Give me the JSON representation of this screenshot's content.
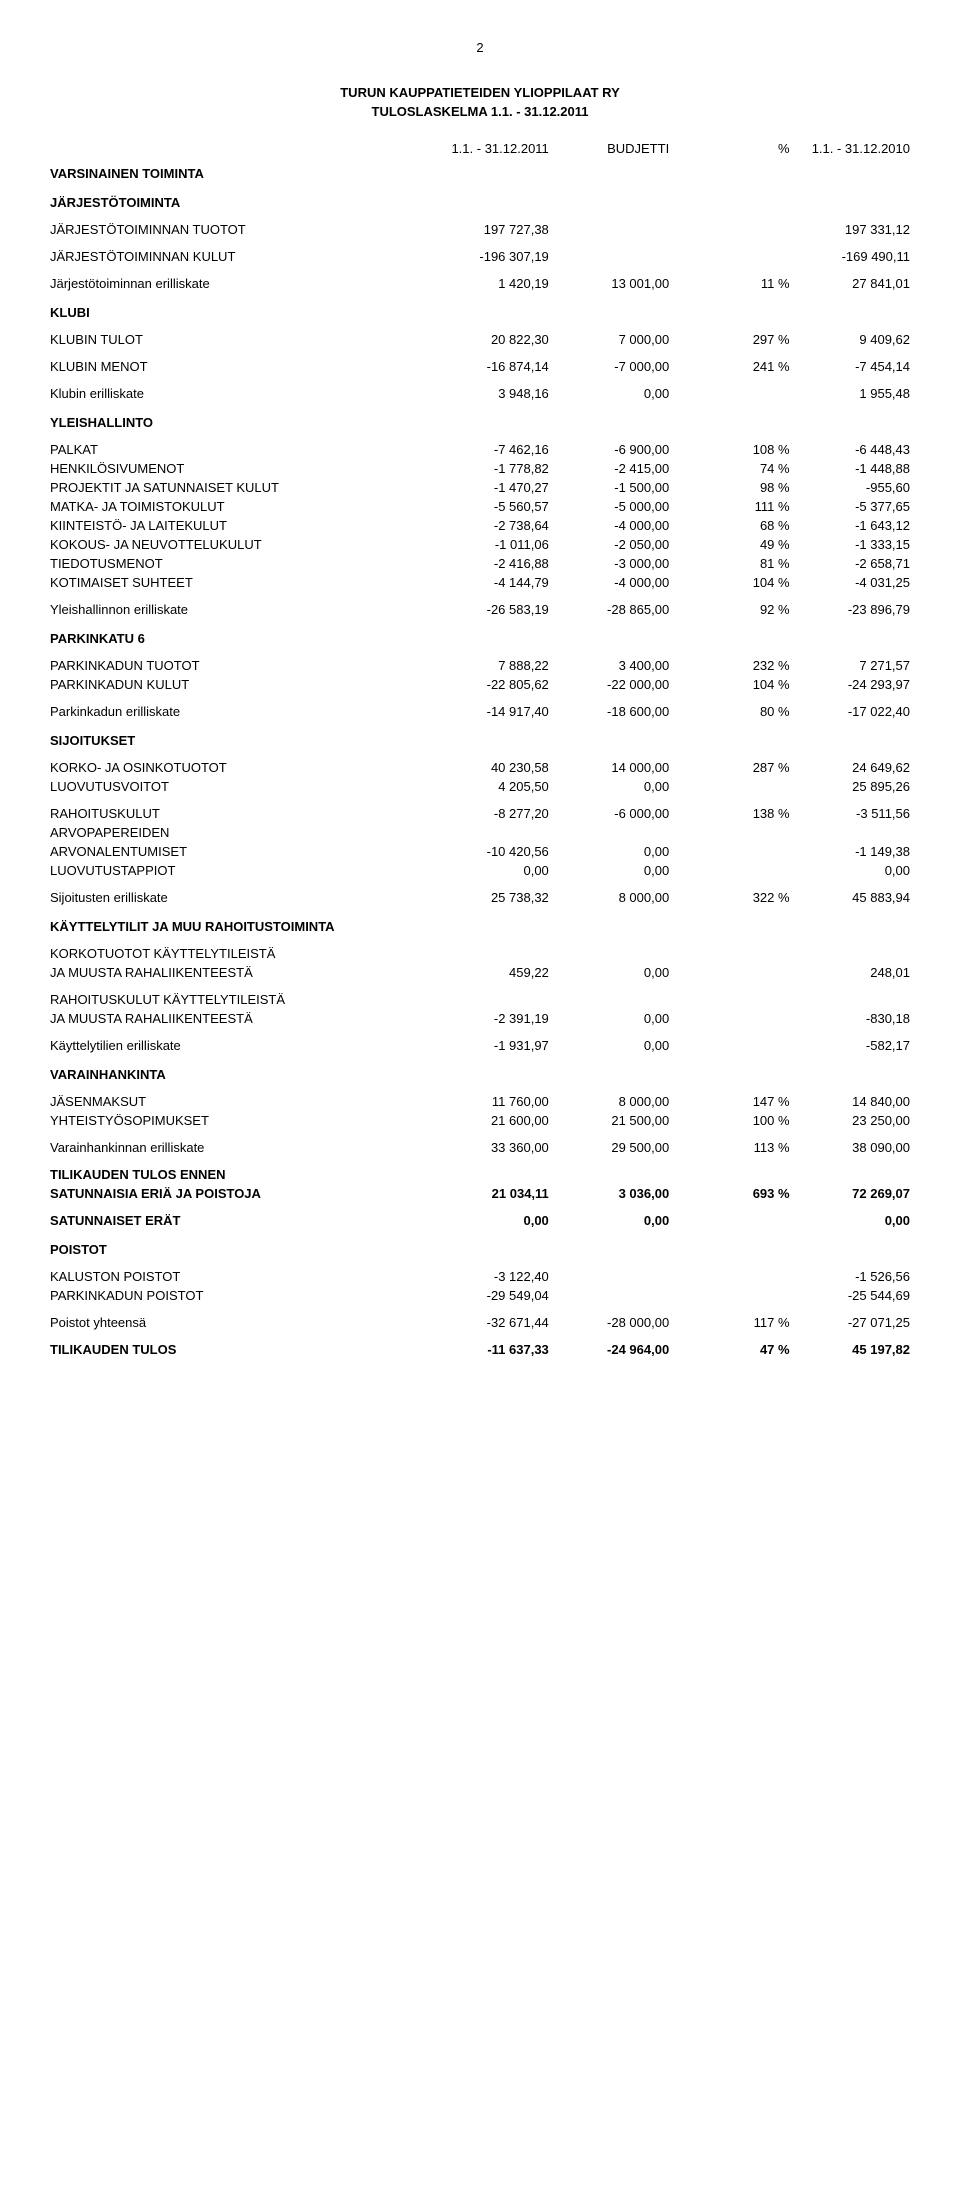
{
  "page_number": "2",
  "org": "TURUN KAUPPATIETEIDEN YLIOPPILAAT RY",
  "title": "TULOSLASKELMA 1.1. - 31.12.2011",
  "cols": {
    "c1": "1.1. - 31.12.2011",
    "c2": "BUDJETTI",
    "c3": "%",
    "c4": "1.1. - 31.12.2010"
  },
  "s_vars": "VARSINAINEN TOIMINTA",
  "s_jarj": "JÄRJESTÖTOIMINTA",
  "jt_t": {
    "l": "JÄRJESTÖTOIMINNAN TUOTOT",
    "c1": "197 727,38",
    "c4": "197 331,12"
  },
  "jt_k": {
    "l": "JÄRJESTÖTOIMINNAN KULUT",
    "c1": "-196 307,19",
    "c4": "-169 490,11"
  },
  "jt_e": {
    "l": "Järjestötoiminnan erilliskate",
    "c1": "1 420,19",
    "c2": "13 001,00",
    "c3": "11 %",
    "c4": "27 841,01"
  },
  "s_klubi": "KLUBI",
  "kl_t": {
    "l": "KLUBIN TULOT",
    "c1": "20 822,30",
    "c2": "7 000,00",
    "c3": "297 %",
    "c4": "9 409,62"
  },
  "kl_m": {
    "l": "KLUBIN MENOT",
    "c1": "-16 874,14",
    "c2": "-7 000,00",
    "c3": "241 %",
    "c4": "-7 454,14"
  },
  "kl_e": {
    "l": "Klubin erilliskate",
    "c1": "3 948,16",
    "c2": "0,00",
    "c4": "1 955,48"
  },
  "s_yle": "YLEISHALLINTO",
  "y1": {
    "l": "PALKAT",
    "c1": "-7 462,16",
    "c2": "-6 900,00",
    "c3": "108 %",
    "c4": "-6 448,43"
  },
  "y2": {
    "l": "HENKILÖSIVUMENOT",
    "c1": "-1 778,82",
    "c2": "-2 415,00",
    "c3": "74 %",
    "c4": "-1 448,88"
  },
  "y3": {
    "l": "PROJEKTIT JA SATUNNAISET KULUT",
    "c1": "-1 470,27",
    "c2": "-1 500,00",
    "c3": "98 %",
    "c4": "-955,60"
  },
  "y4": {
    "l": "MATKA- JA TOIMISTOKULUT",
    "c1": "-5 560,57",
    "c2": "-5 000,00",
    "c3": "111 %",
    "c4": "-5 377,65"
  },
  "y5": {
    "l": "KIINTEISTÖ- JA LAITEKULUT",
    "c1": "-2 738,64",
    "c2": "-4 000,00",
    "c3": "68 %",
    "c4": "-1 643,12"
  },
  "y6": {
    "l": "KOKOUS- JA NEUVOTTELUKULUT",
    "c1": "-1 011,06",
    "c2": "-2 050,00",
    "c3": "49 %",
    "c4": "-1 333,15"
  },
  "y7": {
    "l": "TIEDOTUSMENOT",
    "c1": "-2 416,88",
    "c2": "-3 000,00",
    "c3": "81 %",
    "c4": "-2 658,71"
  },
  "y8": {
    "l": "KOTIMAISET SUHTEET",
    "c1": "-4 144,79",
    "c2": "-4 000,00",
    "c3": "104 %",
    "c4": "-4 031,25"
  },
  "y_e": {
    "l": "Yleishallinnon erilliskate",
    "c1": "-26 583,19",
    "c2": "-28 865,00",
    "c3": "92 %",
    "c4": "-23 896,79"
  },
  "s_park": "PARKINKATU 6",
  "p_t": {
    "l": "PARKINKADUN TUOTOT",
    "c1": "7 888,22",
    "c2": "3 400,00",
    "c3": "232 %",
    "c4": "7 271,57"
  },
  "p_k": {
    "l": "PARKINKADUN KULUT",
    "c1": "-22 805,62",
    "c2": "-22 000,00",
    "c3": "104 %",
    "c4": "-24 293,97"
  },
  "p_e": {
    "l": "Parkinkadun erilliskate",
    "c1": "-14 917,40",
    "c2": "-18 600,00",
    "c3": "80 %",
    "c4": "-17 022,40"
  },
  "s_sij": "SIJOITUKSET",
  "si1": {
    "l": "KORKO- JA OSINKOTUOTOT",
    "c1": "40 230,58",
    "c2": "14 000,00",
    "c3": "287 %",
    "c4": "24 649,62"
  },
  "si2": {
    "l": "LUOVUTUSVOITOT",
    "c1": "4 205,50",
    "c2": "0,00",
    "c4": "25 895,26"
  },
  "si3": {
    "l": "RAHOITUSKULUT",
    "c1": "-8 277,20",
    "c2": "-6 000,00",
    "c3": "138 %",
    "c4": "-3 511,56"
  },
  "si4a": {
    "l": "ARVOPAPEREIDEN"
  },
  "si4b": {
    "l": "ARVONALENTUMISET",
    "c1": "-10 420,56",
    "c2": "0,00",
    "c4": "-1 149,38"
  },
  "si5": {
    "l": "LUOVUTUSTAPPIOT",
    "c1": "0,00",
    "c2": "0,00",
    "c4": "0,00"
  },
  "si_e": {
    "l": "Sijoitusten erilliskate",
    "c1": "25 738,32",
    "c2": "8 000,00",
    "c3": "322 %",
    "c4": "45 883,94"
  },
  "s_kay": "KÄYTTELYTILIT JA MUU RAHOITUSTOIMINTA",
  "ka1a": {
    "l": "KORKOTUOTOT KÄYTTELYTILEISTÄ"
  },
  "ka1b": {
    "l": "JA MUUSTA RAHALIIKENTEESTÄ",
    "c1": "459,22",
    "c2": "0,00",
    "c4": "248,01"
  },
  "ka2a": {
    "l": "RAHOITUSKULUT KÄYTTELYTILEISTÄ"
  },
  "ka2b": {
    "l": "JA MUUSTA RAHALIIKENTEESTÄ",
    "c1": "-2 391,19",
    "c2": "0,00",
    "c4": "-830,18"
  },
  "ka_e": {
    "l": "Käyttelytilien erilliskate",
    "c1": "-1 931,97",
    "c2": "0,00",
    "c4": "-582,17"
  },
  "s_var": "VARAINHANKINTA",
  "v1": {
    "l": "JÄSENMAKSUT",
    "c1": "11 760,00",
    "c2": "8 000,00",
    "c3": "147 %",
    "c4": "14 840,00"
  },
  "v2": {
    "l": "YHTEISTYÖSOPIMUKSET",
    "c1": "21 600,00",
    "c2": "21 500,00",
    "c3": "100 %",
    "c4": "23 250,00"
  },
  "v_e": {
    "l": "Varainhankinnan erilliskate",
    "c1": "33 360,00",
    "c2": "29 500,00",
    "c3": "113 %",
    "c4": "38 090,00"
  },
  "te_a": {
    "l": "TILIKAUDEN TULOS ENNEN"
  },
  "te_b": {
    "l": "SATUNNAISIA ERIÄ JA POISTOJA",
    "c1": "21 034,11",
    "c2": "3 036,00",
    "c3": "693 %",
    "c4": "72 269,07"
  },
  "sat": {
    "l": "SATUNNAISET ERÄT",
    "c1": "0,00",
    "c2": "0,00",
    "c4": "0,00"
  },
  "s_poi": "POISTOT",
  "po1": {
    "l": "KALUSTON POISTOT",
    "c1": "-3 122,40",
    "c4": "-1 526,56"
  },
  "po2": {
    "l": "PARKINKADUN POISTOT",
    "c1": "-29 549,04",
    "c4": "-25 544,69"
  },
  "po_y": {
    "l": "Poistot yhteensä",
    "c1": "-32 671,44",
    "c2": "-28 000,00",
    "c3": "117 %",
    "c4": "-27 071,25"
  },
  "tulos": {
    "l": "TILIKAUDEN TULOS",
    "c1": "-11 637,33",
    "c2": "-24 964,00",
    "c3": "47 %",
    "c4": "45 197,82"
  }
}
